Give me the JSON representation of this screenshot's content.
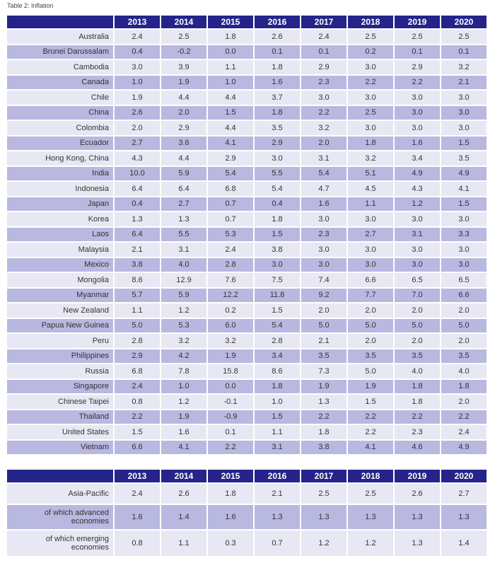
{
  "caption": "Table 2: Inflation",
  "years": [
    "2013",
    "2014",
    "2015",
    "2016",
    "2017",
    "2018",
    "2019",
    "2020"
  ],
  "rows": [
    {
      "name": "Australia",
      "v": [
        "2.4",
        "2.5",
        "1.8",
        "2.6",
        "2.4",
        "2.5",
        "2.5",
        "2.5"
      ]
    },
    {
      "name": "Brunei Darussalam",
      "v": [
        "0.4",
        "-0.2",
        "0.0",
        "0.1",
        "0.1",
        "0.2",
        "0.1",
        "0.1"
      ]
    },
    {
      "name": "Cambodia",
      "v": [
        "3.0",
        "3.9",
        "1.1",
        "1.8",
        "2.9",
        "3.0",
        "2.9",
        "3.2"
      ]
    },
    {
      "name": "Canada",
      "v": [
        "1.0",
        "1.9",
        "1.0",
        "1.6",
        "2.3",
        "2.2",
        "2.2",
        "2.1"
      ]
    },
    {
      "name": "Chile",
      "v": [
        "1.9",
        "4.4",
        "4.4",
        "3.7",
        "3.0",
        "3.0",
        "3.0",
        "3.0"
      ]
    },
    {
      "name": "China",
      "v": [
        "2.6",
        "2.0",
        "1.5",
        "1.8",
        "2.2",
        "2.5",
        "3.0",
        "3.0"
      ]
    },
    {
      "name": "Colombia",
      "v": [
        "2.0",
        "2.9",
        "4.4",
        "3.5",
        "3.2",
        "3.0",
        "3.0",
        "3.0"
      ]
    },
    {
      "name": "Ecuador",
      "v": [
        "2.7",
        "3.6",
        "4.1",
        "2.9",
        "2.0",
        "1.8",
        "1.6",
        "1.5"
      ]
    },
    {
      "name": "Hong Kong, China",
      "v": [
        "4.3",
        "4.4",
        "2.9",
        "3.0",
        "3.1",
        "3.2",
        "3.4",
        "3.5"
      ]
    },
    {
      "name": "India",
      "v": [
        "10.0",
        "5.9",
        "5.4",
        "5.5",
        "5.4",
        "5.1",
        "4.9",
        "4.9"
      ]
    },
    {
      "name": "Indonesia",
      "v": [
        "6.4",
        "6.4",
        "6.8",
        "5.4",
        "4.7",
        "4.5",
        "4.3",
        "4.1"
      ]
    },
    {
      "name": "Japan",
      "v": [
        "0.4",
        "2.7",
        "0.7",
        "0.4",
        "1.6",
        "1.1",
        "1.2",
        "1.5"
      ]
    },
    {
      "name": "Korea",
      "v": [
        "1.3",
        "1.3",
        "0.7",
        "1.8",
        "3.0",
        "3.0",
        "3.0",
        "3.0"
      ]
    },
    {
      "name": "Laos",
      "v": [
        "6.4",
        "5.5",
        "5.3",
        "1.5",
        "2.3",
        "2.7",
        "3.1",
        "3.3"
      ]
    },
    {
      "name": "Malaysia",
      "v": [
        "2.1",
        "3.1",
        "2.4",
        "3.8",
        "3.0",
        "3.0",
        "3.0",
        "3.0"
      ]
    },
    {
      "name": "Mexico",
      "v": [
        "3.8",
        "4.0",
        "2.8",
        "3.0",
        "3.0",
        "3.0",
        "3.0",
        "3.0"
      ]
    },
    {
      "name": "Mongolia",
      "v": [
        "8.6",
        "12.9",
        "7.6",
        "7.5",
        "7.4",
        "6.6",
        "6.5",
        "6.5"
      ]
    },
    {
      "name": "Myanmar",
      "v": [
        "5.7",
        "5.9",
        "12.2",
        "11.8",
        "9.2",
        "7.7",
        "7.0",
        "6.6"
      ]
    },
    {
      "name": "New Zealand",
      "v": [
        "1.1",
        "1.2",
        "0.2",
        "1.5",
        "2.0",
        "2.0",
        "2.0",
        "2.0"
      ]
    },
    {
      "name": "Papua New Guinea",
      "v": [
        "5.0",
        "5.3",
        "6.0",
        "5.4",
        "5.0",
        "5.0",
        "5.0",
        "5.0"
      ]
    },
    {
      "name": "Peru",
      "v": [
        "2.8",
        "3.2",
        "3.2",
        "2.8",
        "2.1",
        "2.0",
        "2.0",
        "2.0"
      ]
    },
    {
      "name": "Philippines",
      "v": [
        "2.9",
        "4.2",
        "1.9",
        "3.4",
        "3.5",
        "3.5",
        "3.5",
        "3.5"
      ]
    },
    {
      "name": "Russia",
      "v": [
        "6.8",
        "7.8",
        "15.8",
        "8.6",
        "7.3",
        "5.0",
        "4.0",
        "4.0"
      ]
    },
    {
      "name": "Singapore",
      "v": [
        "2.4",
        "1.0",
        "0.0",
        "1.8",
        "1.9",
        "1.9",
        "1.8",
        "1.8"
      ]
    },
    {
      "name": "Chinese Taipei",
      "v": [
        "0.8",
        "1.2",
        "-0.1",
        "1.0",
        "1.3",
        "1.5",
        "1.8",
        "2.0"
      ]
    },
    {
      "name": "Thailand",
      "v": [
        "2.2",
        "1.9",
        "-0.9",
        "1.5",
        "2.2",
        "2.2",
        "2.2",
        "2.2"
      ]
    },
    {
      "name": "United States",
      "v": [
        "1.5",
        "1.6",
        "0.1",
        "1.1",
        "1.8",
        "2.2",
        "2.3",
        "2.4"
      ]
    },
    {
      "name": "Vietnam",
      "v": [
        "6.6",
        "4.1",
        "2.2",
        "3.1",
        "3.8",
        "4.1",
        "4.6",
        "4.9"
      ]
    }
  ],
  "summary": [
    {
      "name": "Asia-Pacific",
      "v": [
        "2.4",
        "2.6",
        "1.8",
        "2.1",
        "2.5",
        "2.5",
        "2.6",
        "2.7"
      ]
    },
    {
      "name": "of which advanced economies",
      "v": [
        "1.6",
        "1.4",
        "1.6",
        "1.3",
        "1.3",
        "1.3",
        "1.3",
        "1.3"
      ]
    },
    {
      "name": "of which emerging economies",
      "v": [
        "0.8",
        "1.1",
        "0.3",
        "0.7",
        "1.2",
        "1.2",
        "1.3",
        "1.4"
      ]
    }
  ]
}
